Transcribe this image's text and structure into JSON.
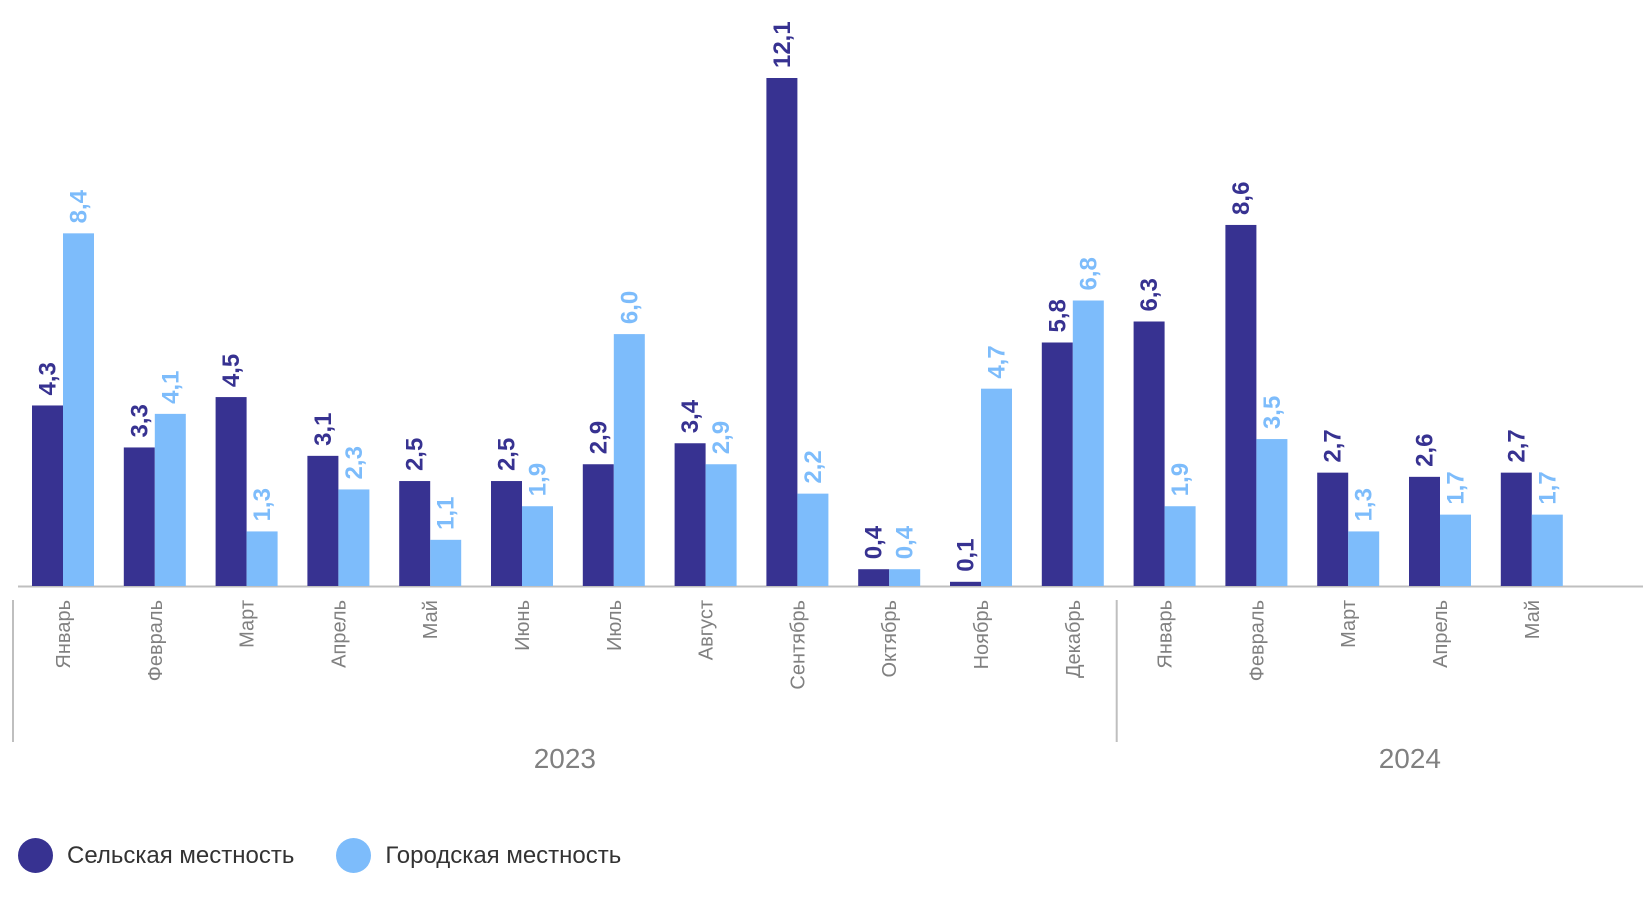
{
  "chart_data": {
    "type": "bar",
    "groups": [
      {
        "year": "2023",
        "categories": [
          "Январь",
          "Февраль",
          "Март",
          "Апрель",
          "Май",
          "Июнь",
          "Июль",
          "Август",
          "Сентябрь",
          "Октябрь",
          "Ноябрь",
          "Декабрь"
        ]
      },
      {
        "year": "2024",
        "categories": [
          "Январь",
          "Февраль",
          "Март",
          "Апрель",
          "Май"
        ]
      }
    ],
    "series": [
      {
        "name": "Сельская местность",
        "color": "#373291",
        "values": [
          4.3,
          3.3,
          4.5,
          3.1,
          2.5,
          2.5,
          2.9,
          3.4,
          12.1,
          0.4,
          0.1,
          5.8,
          6.3,
          8.6,
          2.7,
          2.6,
          2.7
        ],
        "labels": [
          "4,3",
          "3,3",
          "4,5",
          "3,1",
          "2,5",
          "2,5",
          "2,9",
          "3,4",
          "12,1",
          "0,4",
          "0,1",
          "5,8",
          "6,3",
          "8,6",
          "2,7",
          "2,6",
          "2,7"
        ]
      },
      {
        "name": "Городская местность",
        "color": "#7dbcfb",
        "values": [
          8.4,
          4.1,
          1.3,
          2.3,
          1.1,
          1.9,
          6.0,
          2.9,
          2.2,
          0.4,
          4.7,
          6.8,
          1.9,
          3.5,
          1.3,
          1.7,
          1.7
        ],
        "labels": [
          "8,4",
          "4,1",
          "1,3",
          "2,3",
          "1,1",
          "1,9",
          "6,0",
          "2,9",
          "2,2",
          "0,4",
          "4,7",
          "6,8",
          "1,9",
          "3,5",
          "1,3",
          "1,7",
          "1,7"
        ]
      }
    ],
    "ylim": [
      0,
      12.1
    ],
    "grid": false,
    "legend_position": "bottom-left",
    "data_labels": true,
    "label_color_series_1": "#373291",
    "label_color_series_2": "#7dbcfb",
    "axis_label_color": "#808080"
  }
}
